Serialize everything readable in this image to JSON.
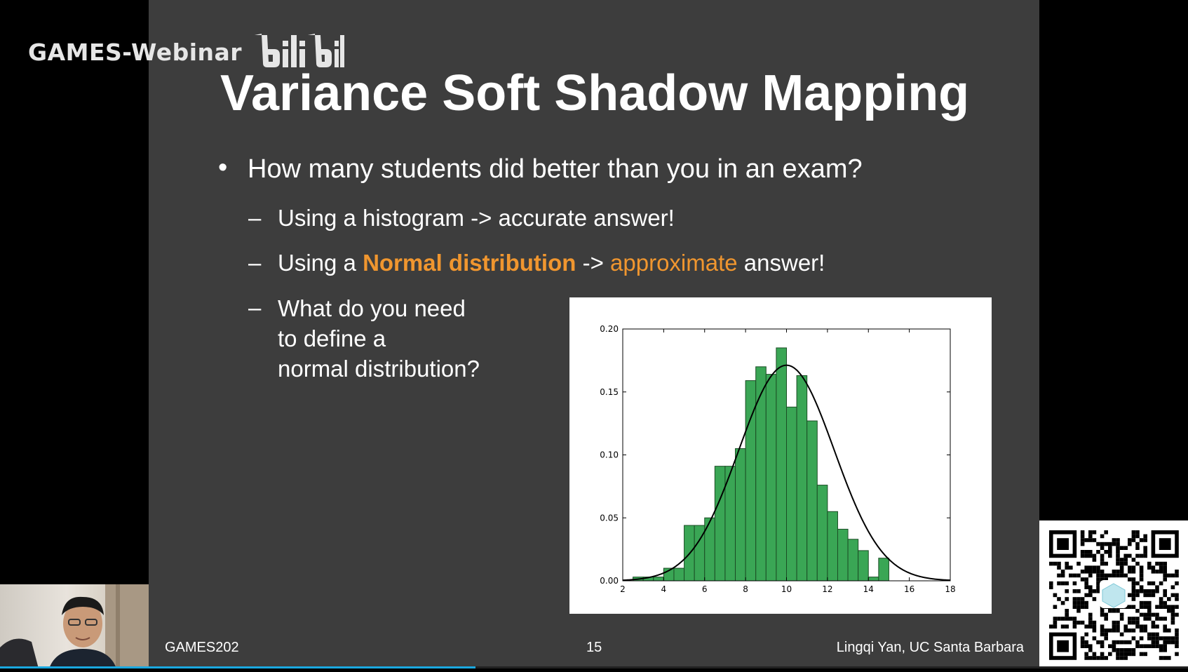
{
  "watermark": {
    "text": "GAMES-Webinar",
    "logo": "bilibili"
  },
  "slide": {
    "title": "Variance Soft Shadow Mapping",
    "bullet1": "How many students did better than you in an exam?",
    "sub1": "Using a histogram -> accurate answer!",
    "sub2": {
      "prefix": "Using a ",
      "highlight": "Normal distribution",
      "middle": " -> ",
      "orange": "approximate",
      "suffix": " answer!"
    },
    "sub3": {
      "line1": "What do you need",
      "line2": "to define a",
      "line3": "normal distribution?"
    },
    "dash": "–",
    "bullet_mark": "•"
  },
  "footer": {
    "left": "GAMES202",
    "page": "15",
    "right": "Lingqi Yan, UC Santa Barbara"
  },
  "player": {
    "progress_fraction": 0.4
  },
  "colors": {
    "slide_bg": "#3d3d3d",
    "accent_orange": "#f0962f",
    "bar_fill": "#3aa655",
    "bar_edge": "#1b4d25"
  },
  "chart_data": {
    "type": "bar",
    "subtype": "histogram",
    "bin_width": 0.5,
    "bins": [
      {
        "x0": 2.0,
        "y": 0.0
      },
      {
        "x0": 2.5,
        "y": 0.003
      },
      {
        "x0": 3.0,
        "y": 0.003
      },
      {
        "x0": 3.5,
        "y": 0.003
      },
      {
        "x0": 4.0,
        "y": 0.01
      },
      {
        "x0": 4.5,
        "y": 0.01
      },
      {
        "x0": 5.0,
        "y": 0.044
      },
      {
        "x0": 5.5,
        "y": 0.044
      },
      {
        "x0": 6.0,
        "y": 0.05
      },
      {
        "x0": 6.5,
        "y": 0.091
      },
      {
        "x0": 7.0,
        "y": 0.091
      },
      {
        "x0": 7.5,
        "y": 0.105
      },
      {
        "x0": 8.0,
        "y": 0.159
      },
      {
        "x0": 8.5,
        "y": 0.17
      },
      {
        "x0": 9.0,
        "y": 0.164
      },
      {
        "x0": 9.5,
        "y": 0.185
      },
      {
        "x0": 10.0,
        "y": 0.138
      },
      {
        "x0": 10.5,
        "y": 0.163
      },
      {
        "x0": 11.0,
        "y": 0.127
      },
      {
        "x0": 11.5,
        "y": 0.076
      },
      {
        "x0": 12.0,
        "y": 0.055
      },
      {
        "x0": 12.5,
        "y": 0.041
      },
      {
        "x0": 13.0,
        "y": 0.033
      },
      {
        "x0": 13.5,
        "y": 0.024
      },
      {
        "x0": 14.0,
        "y": 0.003
      },
      {
        "x0": 14.5,
        "y": 0.018
      },
      {
        "x0": 15.0,
        "y": 0.0
      }
    ],
    "curve": {
      "type": "normal",
      "mean": 10,
      "std": 2.33
    },
    "xlim": [
      2,
      18
    ],
    "ylim": [
      0,
      0.2
    ],
    "xticks": [
      2,
      4,
      6,
      8,
      10,
      12,
      14,
      16,
      18
    ],
    "yticks": [
      0.0,
      0.05,
      0.1,
      0.15,
      0.2
    ],
    "ytick_labels": [
      "0.00",
      "0.05",
      "0.10",
      "0.15",
      "0.20"
    ],
    "grid": false,
    "title": "",
    "xlabel": "",
    "ylabel": ""
  }
}
